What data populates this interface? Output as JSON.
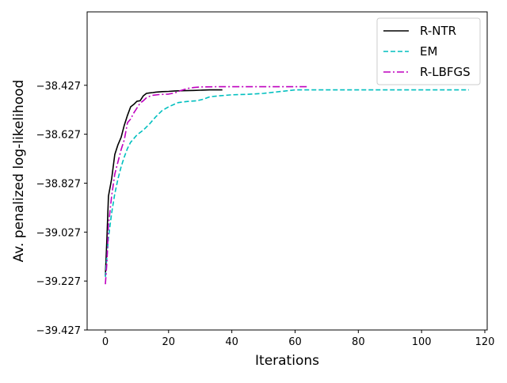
{
  "chart_data": {
    "type": "line",
    "title": "",
    "xlabel": "Iterations",
    "ylabel": "Av. penalized log-likelihood",
    "xlim": [
      -5.75,
      120.75
    ],
    "ylim": [
      -39.427,
      -38.127
    ],
    "xticks": [
      0,
      20,
      40,
      60,
      80,
      100,
      120
    ],
    "xtick_labels": [
      "0",
      "20",
      "40",
      "60",
      "80",
      "100",
      "120"
    ],
    "yticks": [
      -39.427,
      -39.227,
      -39.027,
      -38.827,
      -38.627,
      -38.427
    ],
    "ytick_labels": [
      "−39.427",
      "−39.227",
      "−39.027",
      "−38.827",
      "−38.627",
      "−38.427"
    ],
    "grid": false,
    "legend_position": "top-right",
    "series": [
      {
        "name": "R-NTR",
        "color": "#000000",
        "dash": "solid",
        "x": [
          0,
          0.5,
          1,
          2,
          3,
          4,
          5,
          6,
          7,
          8,
          9,
          10,
          11,
          12,
          13,
          14,
          15,
          16,
          18,
          20,
          22,
          25,
          28,
          30,
          33,
          37
        ],
        "y": [
          -39.205,
          -39.05,
          -38.88,
          -38.81,
          -38.71,
          -38.67,
          -38.64,
          -38.59,
          -38.55,
          -38.515,
          -38.505,
          -38.492,
          -38.49,
          -38.47,
          -38.46,
          -38.458,
          -38.457,
          -38.455,
          -38.453,
          -38.452,
          -38.45,
          -38.449,
          -38.448,
          -38.447,
          -38.446,
          -38.446
        ]
      },
      {
        "name": "EM",
        "color": "#00bfbf",
        "dash": "dashed",
        "x": [
          0,
          1,
          2,
          3,
          4,
          5,
          6,
          7,
          8,
          10,
          12,
          14,
          16,
          18,
          20,
          23,
          26,
          29,
          31,
          33,
          36,
          40,
          45,
          50,
          60,
          80,
          100,
          115
        ],
        "y": [
          -39.21,
          -39.05,
          -38.95,
          -38.87,
          -38.81,
          -38.76,
          -38.72,
          -38.685,
          -38.66,
          -38.63,
          -38.61,
          -38.585,
          -38.555,
          -38.53,
          -38.515,
          -38.498,
          -38.493,
          -38.49,
          -38.484,
          -38.474,
          -38.47,
          -38.466,
          -38.464,
          -38.46,
          -38.446,
          -38.446,
          -38.446,
          -38.446
        ]
      },
      {
        "name": "R-LBFGS",
        "color": "#bf00bf",
        "dash": "dashdot",
        "x": [
          0,
          0.5,
          1,
          2,
          3,
          4,
          5,
          6,
          7,
          8,
          9,
          10,
          11,
          12,
          13,
          14,
          15,
          17,
          20,
          22,
          24,
          26,
          28,
          30,
          35,
          40,
          50,
          64
        ],
        "y": [
          -39.24,
          -39.15,
          -39.0,
          -38.88,
          -38.79,
          -38.74,
          -38.69,
          -38.65,
          -38.58,
          -38.565,
          -38.54,
          -38.52,
          -38.5,
          -38.49,
          -38.478,
          -38.472,
          -38.468,
          -38.465,
          -38.463,
          -38.458,
          -38.448,
          -38.44,
          -38.436,
          -38.434,
          -38.433,
          -38.433,
          -38.433,
          -38.433
        ]
      }
    ]
  }
}
